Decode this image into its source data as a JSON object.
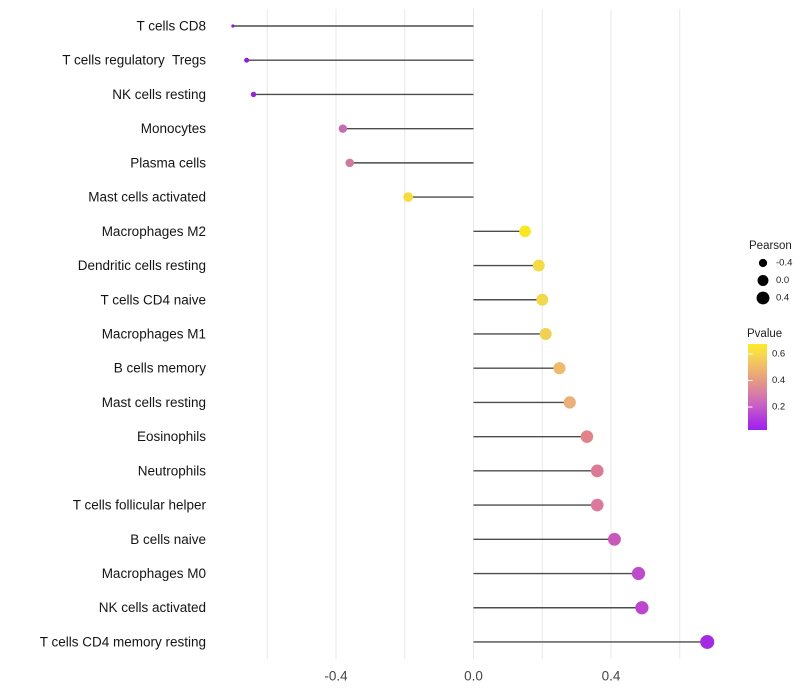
{
  "chart_data": {
    "type": "scatter",
    "subtype": "lollipop",
    "title": "",
    "xlabel": "",
    "ylabel": "",
    "x_axis": {
      "range": [
        -0.81,
        0.79
      ],
      "tick_values": [
        -0.4,
        0.0,
        0.4
      ],
      "tick_labels": [
        "-0.4",
        "0.0",
        "0.4"
      ],
      "gridline_values": [
        -0.6,
        -0.4,
        -0.2,
        0.0,
        0.2,
        0.4,
        0.6
      ],
      "grid_on": true
    },
    "points": [
      {
        "label": "T cells CD8",
        "pearson": -0.7,
        "pvalue_color": "#8A1FD0"
      },
      {
        "label": "T cells regulatory  Tregs",
        "pearson": -0.66,
        "pvalue_color": "#8E22D6"
      },
      {
        "label": "NK cells resting",
        "pearson": -0.64,
        "pvalue_color": "#9126DB"
      },
      {
        "label": "Monocytes",
        "pearson": -0.38,
        "pvalue_color": "#C66CB0"
      },
      {
        "label": "Plasma cells",
        "pearson": -0.36,
        "pvalue_color": "#D07A9E"
      },
      {
        "label": "Mast cells activated",
        "pearson": -0.19,
        "pvalue_color": "#F6DC3D"
      },
      {
        "label": "Macrophages M2",
        "pearson": 0.15,
        "pvalue_color": "#F9E722"
      },
      {
        "label": "Dendritic cells resting",
        "pearson": 0.19,
        "pvalue_color": "#F4DA46"
      },
      {
        "label": "T cells CD4 naive",
        "pearson": 0.2,
        "pvalue_color": "#F3D74C"
      },
      {
        "label": "Macrophages M1",
        "pearson": 0.21,
        "pvalue_color": "#F1D153"
      },
      {
        "label": "B cells memory",
        "pearson": 0.25,
        "pvalue_color": "#EFBA6E"
      },
      {
        "label": "Mast cells resting",
        "pearson": 0.28,
        "pvalue_color": "#ECAF7A"
      },
      {
        "label": "Eosinophils",
        "pearson": 0.33,
        "pvalue_color": "#E08489"
      },
      {
        "label": "Neutrophils",
        "pearson": 0.36,
        "pvalue_color": "#DB7A96"
      },
      {
        "label": "T cells follicular helper",
        "pearson": 0.36,
        "pvalue_color": "#DA789D"
      },
      {
        "label": "B cells naive",
        "pearson": 0.41,
        "pvalue_color": "#C958BB"
      },
      {
        "label": "Macrophages M0",
        "pearson": 0.48,
        "pvalue_color": "#BE4BC9"
      },
      {
        "label": "NK cells activated",
        "pearson": 0.49,
        "pvalue_color": "#BC46CD"
      },
      {
        "label": "T cells CD4 memory resting",
        "pearson": 0.68,
        "pvalue_color": "#A52BE3"
      }
    ],
    "legend_position": "right",
    "size_legend": {
      "title": "Pearson",
      "entries": [
        {
          "label": "-0.4",
          "value": -0.4
        },
        {
          "label": "0.0",
          "value": 0.0
        },
        {
          "label": "0.4",
          "value": 0.4
        }
      ],
      "dot_color": "#000000"
    },
    "color_legend": {
      "title": "Pvalue",
      "tick_labels": [
        "0.6",
        "0.4",
        "0.2"
      ],
      "gradient_stops_top_to_bottom": [
        {
          "offset": "0%",
          "color": "#FBEC25"
        },
        {
          "offset": "12%",
          "color": "#F7D84F"
        },
        {
          "offset": "27%",
          "color": "#F0B96B"
        },
        {
          "offset": "42%",
          "color": "#E69B82"
        },
        {
          "offset": "57%",
          "color": "#D87EA6"
        },
        {
          "offset": "72%",
          "color": "#C75FC5"
        },
        {
          "offset": "86%",
          "color": "#B23BDE"
        },
        {
          "offset": "100%",
          "color": "#A01FF0"
        }
      ]
    },
    "style_colors": {
      "background": "#FFFFFF",
      "gridline": "#E8E8E8",
      "stem": "#4C4C4C",
      "y_label_text": "#141414",
      "x_tick_text": "#454545",
      "legend_text": "#202020"
    }
  }
}
